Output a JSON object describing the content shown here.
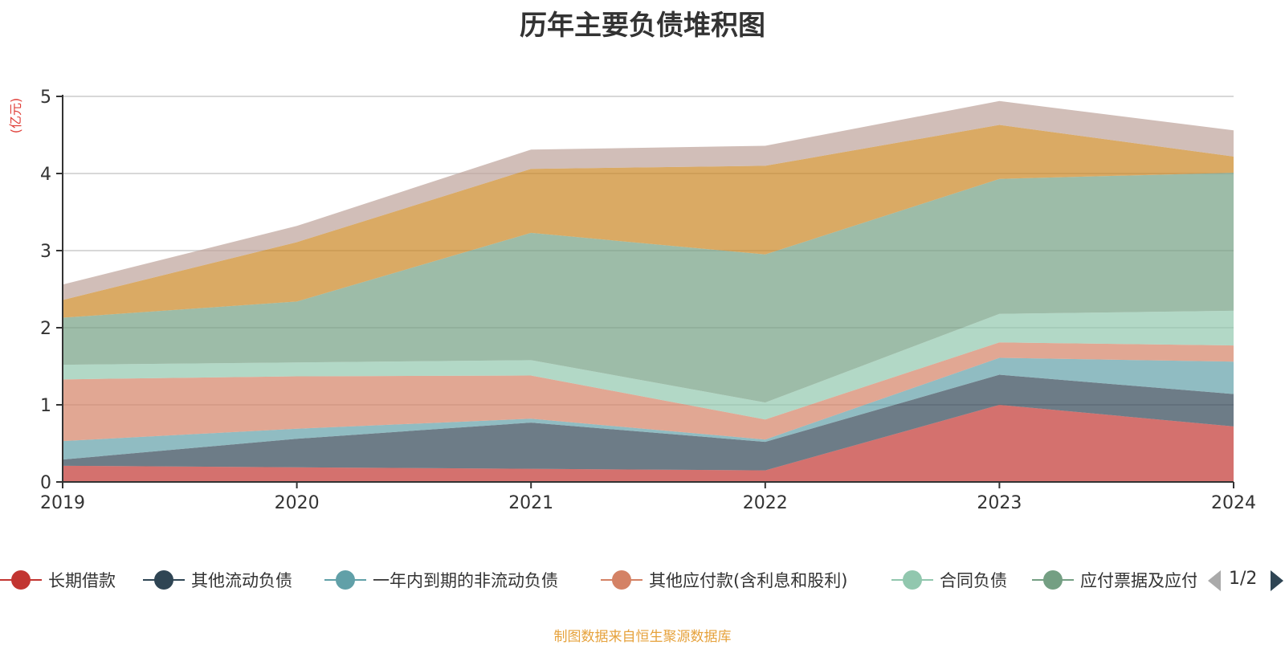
{
  "title": "历年主要负债堆积图",
  "unit_label": "(亿元)",
  "source": "制图数据来自恒生聚源数据库",
  "pager": {
    "text": "1/2"
  },
  "legend": [
    {
      "name": "长期借款",
      "color": "#c23531"
    },
    {
      "name": "其他流动负债",
      "color": "#2f4554"
    },
    {
      "name": "一年内到期的非流动负债",
      "color": "#61a0a8"
    },
    {
      "name": "其他应付款(含利息和股利)",
      "color": "#d48265"
    },
    {
      "name": "合同负债",
      "color": "#91c7ae"
    },
    {
      "name": "应付票据及应付账款",
      "color": "#749f83"
    }
  ],
  "chart_data": {
    "type": "area",
    "stacked": true,
    "title": "历年主要负债堆积图",
    "ylabel": "(亿元)",
    "categories": [
      "2019",
      "2020",
      "2021",
      "2022",
      "2023",
      "2024"
    ],
    "ylim": [
      0,
      5
    ],
    "yticks": [
      0,
      1,
      2,
      3,
      4,
      5
    ],
    "grid": true,
    "legend_position": "bottom",
    "series": [
      {
        "name": "长期借款",
        "color": "#c23531",
        "values": [
          0.21,
          0.19,
          0.17,
          0.15,
          1.0,
          0.72
        ]
      },
      {
        "name": "其他流动负债",
        "color": "#2f4554",
        "values": [
          0.08,
          0.37,
          0.6,
          0.37,
          0.39,
          0.42
        ]
      },
      {
        "name": "一年内到期的非流动负债",
        "color": "#61a0a8",
        "values": [
          0.24,
          0.13,
          0.05,
          0.03,
          0.22,
          0.42
        ]
      },
      {
        "name": "其他应付款(含利息和股利)",
        "color": "#d48265",
        "values": [
          0.8,
          0.68,
          0.56,
          0.26,
          0.2,
          0.21
        ]
      },
      {
        "name": "合同负债",
        "color": "#91c7ae",
        "values": [
          0.19,
          0.18,
          0.2,
          0.22,
          0.37,
          0.45
        ]
      },
      {
        "name": "应付票据及应付账款",
        "color": "#749f83",
        "values": [
          0.61,
          0.79,
          1.65,
          1.92,
          1.75,
          1.79
        ]
      },
      {
        "name": "",
        "color": "#ca8622",
        "values": [
          0.23,
          0.77,
          0.83,
          1.15,
          0.7,
          0.21
        ]
      },
      {
        "name": "",
        "color": "#bda29a",
        "values": [
          0.2,
          0.21,
          0.25,
          0.26,
          0.31,
          0.34
        ]
      }
    ]
  }
}
